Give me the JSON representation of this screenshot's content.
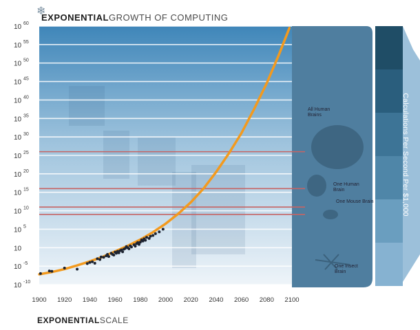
{
  "chart_data": {
    "type": "scatter",
    "title_bold": "EXPONENTIAL",
    "title_light": "GROWTH OF COMPUTING",
    "footer_bold": "EXPONENTIAL",
    "footer_light": "SCALE",
    "ylabel": "Calculations Per Second Per $1,000",
    "xlim": [
      1900,
      2100
    ],
    "ylim": [
      -10,
      60
    ],
    "log_scale_y": true,
    "x_ticks": [
      "1900",
      "1920",
      "1940",
      "1960",
      "1980",
      "2000",
      "2020",
      "2040",
      "2060",
      "2080",
      "2100"
    ],
    "y_ticks": [
      {
        "base": "10",
        "exp": "60",
        "value": 60
      },
      {
        "base": "10",
        "exp": "55",
        "value": 55
      },
      {
        "base": "10",
        "exp": "50",
        "value": 50
      },
      {
        "base": "10",
        "exp": "45",
        "value": 45
      },
      {
        "base": "10",
        "exp": "40",
        "value": 40
      },
      {
        "base": "10",
        "exp": "35",
        "value": 35
      },
      {
        "base": "10",
        "exp": "30",
        "value": 30
      },
      {
        "base": "10",
        "exp": "25",
        "value": 25
      },
      {
        "base": "10",
        "exp": "20",
        "value": 20
      },
      {
        "base": "10",
        "exp": "15",
        "value": 15
      },
      {
        "base": "10",
        "exp": "10",
        "value": 10
      },
      {
        "base": "10",
        "exp": "5",
        "value": 5
      },
      {
        "base": "10",
        "exp": "",
        "value": 0
      },
      {
        "base": "10",
        "exp": "-5",
        "value": -5
      },
      {
        "base": "10",
        "exp": "-10",
        "value": -10
      }
    ],
    "reference_levels": [
      {
        "label": "All Human Brains",
        "value": 26
      },
      {
        "label": "One Human Brain",
        "value": 16
      },
      {
        "label": "One Mouse Brain",
        "value": 11
      },
      {
        "label": "One Insect Brain",
        "value": 9
      }
    ],
    "trend": {
      "x": [
        1900,
        1910,
        1920,
        1930,
        1940,
        1950,
        1960,
        1970,
        1980,
        1990,
        2000,
        2010,
        2020,
        2030,
        2040,
        2050,
        2060,
        2070,
        2080,
        2090,
        2098
      ],
      "y": [
        -7.2,
        -6.6,
        -5.8,
        -4.8,
        -3.7,
        -2.5,
        -1.0,
        0.5,
        2.2,
        4.2,
        6.5,
        9.2,
        12.3,
        16.0,
        20.5,
        25.5,
        31.0,
        37.5,
        44.5,
        52.5,
        59.5
      ]
    },
    "points": [
      {
        "x": 1901,
        "y": -7.0
      },
      {
        "x": 1908,
        "y": -6.3
      },
      {
        "x": 1910,
        "y": -6.4
      },
      {
        "x": 1920,
        "y": -5.5
      },
      {
        "x": 1930,
        "y": -5.8
      },
      {
        "x": 1938,
        "y": -4.3
      },
      {
        "x": 1940,
        "y": -4.0
      },
      {
        "x": 1942,
        "y": -3.8
      },
      {
        "x": 1944,
        "y": -4.2
      },
      {
        "x": 1946,
        "y": -3.0
      },
      {
        "x": 1948,
        "y": -3.2
      },
      {
        "x": 1949,
        "y": -2.5
      },
      {
        "x": 1951,
        "y": -2.6
      },
      {
        "x": 1953,
        "y": -2.2
      },
      {
        "x": 1954,
        "y": -1.8
      },
      {
        "x": 1955,
        "y": -2.4
      },
      {
        "x": 1957,
        "y": -1.5
      },
      {
        "x": 1958,
        "y": -1.8
      },
      {
        "x": 1959,
        "y": -2.0
      },
      {
        "x": 1960,
        "y": -1.2
      },
      {
        "x": 1961,
        "y": -1.5
      },
      {
        "x": 1962,
        "y": -1.0
      },
      {
        "x": 1963,
        "y": -1.4
      },
      {
        "x": 1964,
        "y": -0.8
      },
      {
        "x": 1965,
        "y": -0.6
      },
      {
        "x": 1966,
        "y": -1.1
      },
      {
        "x": 1967,
        "y": -0.4
      },
      {
        "x": 1968,
        "y": -0.2
      },
      {
        "x": 1969,
        "y": 0.3
      },
      {
        "x": 1970,
        "y": 0.0
      },
      {
        "x": 1971,
        "y": -0.3
      },
      {
        "x": 1972,
        "y": 0.5
      },
      {
        "x": 1973,
        "y": 0.2
      },
      {
        "x": 1975,
        "y": 0.8
      },
      {
        "x": 1976,
        "y": 0.4
      },
      {
        "x": 1977,
        "y": 1.1
      },
      {
        "x": 1978,
        "y": 1.4
      },
      {
        "x": 1979,
        "y": 0.9
      },
      {
        "x": 1980,
        "y": 1.5
      },
      {
        "x": 1981,
        "y": 2.1
      },
      {
        "x": 1982,
        "y": 1.8
      },
      {
        "x": 1983,
        "y": 2.4
      },
      {
        "x": 1984,
        "y": 2.0
      },
      {
        "x": 1985,
        "y": 2.8
      },
      {
        "x": 1987,
        "y": 2.5
      },
      {
        "x": 1988,
        "y": 3.1
      },
      {
        "x": 1990,
        "y": 3.3
      },
      {
        "x": 1992,
        "y": 3.8
      },
      {
        "x": 1995,
        "y": 4.3
      },
      {
        "x": 1998,
        "y": 5.0
      }
    ],
    "colors": {
      "trend": "#f39a1e",
      "points": "#1d2330",
      "band": "#5f8aab",
      "reference": "#c66464",
      "gridline": "#ffffff",
      "axis_text": "#333333"
    }
  }
}
